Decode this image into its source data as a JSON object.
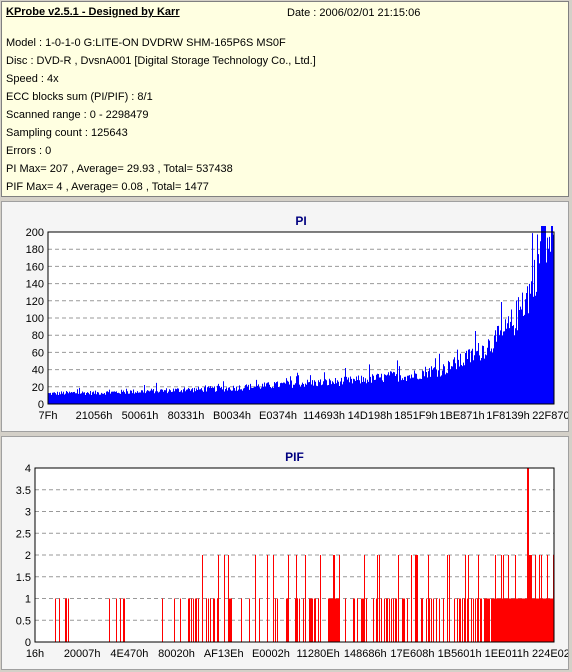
{
  "header": {
    "title": "KProbe v2.5.1 - Designed by Karr",
    "date": "Date : 2006/02/01 21:15:06"
  },
  "info_lines": [
    "Model : 1-0-1-0 G:LITE-ON DVDRW SHM-165P6S MS0F",
    "Disc : DVD-R , DvsnA001 [Digital Storage Technology Co., Ltd.]",
    "Speed : 4x",
    "ECC blocks sum (PI/PIF) : 8/1",
    "Scanned range : 0 - 2298479",
    "Sampling count : 125643",
    "Errors : 0",
    "PI Max= 207 , Average= 29.93 , Total= 537438",
    "PIF Max= 4 , Average= 0.08 , Total= 1477"
  ],
  "colors": {
    "pi_bar": "#0000ff",
    "pif_bar": "#ff0000",
    "chart_title": "#000080",
    "info_bg": "#ffffe1"
  },
  "chart_data": [
    {
      "type": "bar",
      "title": "PI",
      "ylim": [
        0,
        200
      ],
      "yticks": [
        "0",
        "20",
        "40",
        "60",
        "80",
        "100",
        "120",
        "140",
        "160",
        "180",
        "200"
      ],
      "xticks": [
        "7Fh",
        "21056h",
        "50061h",
        "80331h",
        "B0034h",
        "E0374h",
        "114693h",
        "14D198h",
        "1851F9h",
        "1BE871h",
        "1F8139h",
        "22F870h"
      ],
      "x": [
        0.0,
        0.05,
        0.1,
        0.15,
        0.2,
        0.25,
        0.3,
        0.35,
        0.4,
        0.45,
        0.5,
        0.55,
        0.6,
        0.65,
        0.7,
        0.72,
        0.75,
        0.78,
        0.8,
        0.82,
        0.85,
        0.87,
        0.9,
        0.92,
        0.94,
        0.96,
        0.97,
        0.98,
        0.99,
        1.0
      ],
      "values": [
        12,
        13,
        13,
        14,
        15,
        16,
        17,
        18,
        20,
        22,
        24,
        25,
        27,
        30,
        33,
        33,
        38,
        40,
        45,
        50,
        60,
        68,
        80,
        95,
        115,
        140,
        175,
        180,
        190,
        190
      ],
      "max_value": 207,
      "grid": true
    },
    {
      "type": "bar",
      "title": "PIF",
      "ylim": [
        0,
        4
      ],
      "yticks": [
        "0",
        "0.5",
        "1",
        "1.5",
        "2",
        "2.5",
        "3",
        "3.5",
        "4"
      ],
      "xticks": [
        "16h",
        "20007h",
        "4E470h",
        "80020h",
        "AF13Eh",
        "E0002h",
        "11280Eh",
        "148686h",
        "17E608h",
        "1B5601h",
        "1EE011h",
        "224E02h"
      ],
      "max_value": 4,
      "spike_count": 1477,
      "grid": true
    }
  ]
}
